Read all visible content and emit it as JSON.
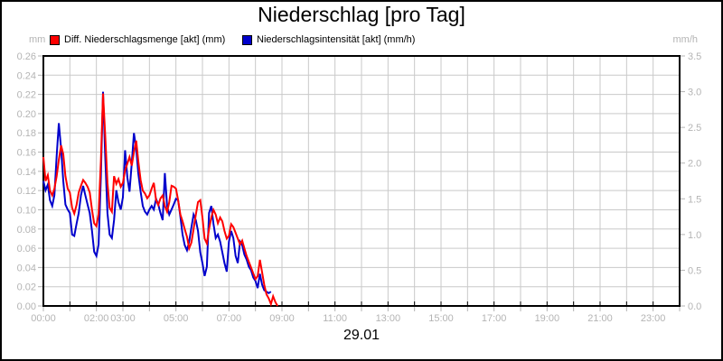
{
  "window": {
    "background": "#ffffff",
    "border_color": "#000000"
  },
  "header": {
    "title": "Niederschlag [pro Tag]"
  },
  "legend": {
    "items": [
      {
        "label": "Diff. Niederschlagsmenge [akt] (mm)",
        "color": "#ff0000"
      },
      {
        "label": "Niederschlagsintensität [akt] (mm/h)",
        "color": "#0000cc"
      }
    ]
  },
  "axis_units": {
    "left": "mm",
    "right": "mm/h"
  },
  "footer": {
    "date_label": "29.01"
  },
  "colors": {
    "grid": "#c9c9c9",
    "axis": "#000000",
    "tick_label": "#b4b4b4",
    "series_red": "#ff0000",
    "series_blue": "#0000cc"
  },
  "chart_data": {
    "type": "line",
    "title": "Niederschlag [pro Tag]",
    "date": "29.01",
    "grid": true,
    "legend_position": "top",
    "x_axis": {
      "unit": "time of day (hours)",
      "range_hours": [
        0,
        24
      ],
      "gridline_every_hours": 1,
      "tick_labels": [
        {
          "hour": 0,
          "label": "00:00"
        },
        {
          "hour": 2,
          "label": "02:00"
        },
        {
          "hour": 3,
          "label": "03:00"
        },
        {
          "hour": 5,
          "label": "05:00"
        },
        {
          "hour": 7,
          "label": "07:00"
        },
        {
          "hour": 9,
          "label": "09:00"
        },
        {
          "hour": 11,
          "label": "11:00"
        },
        {
          "hour": 13,
          "label": "13:00"
        },
        {
          "hour": 15,
          "label": "15:00"
        },
        {
          "hour": 17,
          "label": "17:00"
        },
        {
          "hour": 19,
          "label": "19:00"
        },
        {
          "hour": 21,
          "label": "21:00"
        },
        {
          "hour": 23,
          "label": "23:00"
        }
      ]
    },
    "y_left": {
      "label": "mm",
      "min": 0,
      "max": 0.26,
      "step": 0.02,
      "decimals": 2
    },
    "y_right": {
      "label": "mm/h",
      "min": 0,
      "max": 3.5,
      "step": 0.5,
      "decimals": 1
    },
    "series": [
      {
        "name": "Niederschlagsintensität [akt] (mm/h)",
        "axis": "right",
        "unit": "mm/h",
        "color": "#0000cc",
        "points_min_value": [
          [
            0,
            1.75
          ],
          [
            5,
            1.62
          ],
          [
            10,
            1.7
          ],
          [
            15,
            1.48
          ],
          [
            20,
            1.4
          ],
          [
            25,
            1.55
          ],
          [
            30,
            2.1
          ],
          [
            35,
            2.56
          ],
          [
            40,
            2.2
          ],
          [
            45,
            1.75
          ],
          [
            50,
            1.42
          ],
          [
            55,
            1.35
          ],
          [
            60,
            1.3
          ],
          [
            65,
            1.0
          ],
          [
            70,
            0.98
          ],
          [
            75,
            1.15
          ],
          [
            80,
            1.3
          ],
          [
            85,
            1.55
          ],
          [
            90,
            1.68
          ],
          [
            95,
            1.55
          ],
          [
            100,
            1.42
          ],
          [
            105,
            1.3
          ],
          [
            110,
            1.05
          ],
          [
            115,
            0.76
          ],
          [
            120,
            0.7
          ],
          [
            125,
            0.86
          ],
          [
            130,
            1.8
          ],
          [
            135,
            3.0
          ],
          [
            140,
            2.1
          ],
          [
            145,
            1.3
          ],
          [
            150,
            1.0
          ],
          [
            155,
            0.95
          ],
          [
            160,
            1.2
          ],
          [
            165,
            1.62
          ],
          [
            170,
            1.45
          ],
          [
            175,
            1.35
          ],
          [
            180,
            1.52
          ],
          [
            185,
            2.18
          ],
          [
            190,
            1.8
          ],
          [
            195,
            1.6
          ],
          [
            200,
            2.0
          ],
          [
            205,
            2.42
          ],
          [
            210,
            2.2
          ],
          [
            215,
            1.85
          ],
          [
            220,
            1.6
          ],
          [
            225,
            1.4
          ],
          [
            230,
            1.32
          ],
          [
            235,
            1.28
          ],
          [
            240,
            1.35
          ],
          [
            245,
            1.4
          ],
          [
            250,
            1.35
          ],
          [
            255,
            1.5
          ],
          [
            260,
            1.42
          ],
          [
            265,
            1.3
          ],
          [
            270,
            1.2
          ],
          [
            275,
            1.86
          ],
          [
            280,
            1.4
          ],
          [
            285,
            1.28
          ],
          [
            290,
            1.35
          ],
          [
            295,
            1.42
          ],
          [
            300,
            1.5
          ],
          [
            305,
            1.48
          ],
          [
            310,
            1.25
          ],
          [
            315,
            1.0
          ],
          [
            320,
            0.85
          ],
          [
            325,
            0.78
          ],
          [
            330,
            0.9
          ],
          [
            335,
            1.1
          ],
          [
            340,
            1.28
          ],
          [
            345,
            1.2
          ],
          [
            350,
            1.05
          ],
          [
            355,
            0.75
          ],
          [
            360,
            0.6
          ],
          [
            365,
            0.42
          ],
          [
            370,
            0.55
          ],
          [
            375,
            1.3
          ],
          [
            380,
            1.4
          ],
          [
            385,
            1.15
          ],
          [
            390,
            0.95
          ],
          [
            395,
            1.0
          ],
          [
            400,
            0.9
          ],
          [
            405,
            0.75
          ],
          [
            410,
            0.6
          ],
          [
            415,
            0.48
          ],
          [
            420,
            0.9
          ],
          [
            425,
            1.05
          ],
          [
            430,
            0.95
          ],
          [
            435,
            0.7
          ],
          [
            440,
            0.6
          ],
          [
            445,
            0.9
          ],
          [
            450,
            0.85
          ],
          [
            455,
            0.72
          ],
          [
            460,
            0.65
          ],
          [
            465,
            0.55
          ],
          [
            470,
            0.5
          ],
          [
            475,
            0.4
          ],
          [
            480,
            0.35
          ],
          [
            485,
            0.25
          ],
          [
            490,
            0.45
          ],
          [
            495,
            0.3
          ],
          [
            500,
            0.22
          ],
          [
            505,
            0.2
          ],
          [
            510,
            0.18
          ],
          [
            515,
            0.2
          ]
        ]
      },
      {
        "name": "Diff. Niederschlagsmenge [akt] (mm)",
        "axis": "left",
        "unit": "mm",
        "color": "#ff0000",
        "points_min_value": [
          [
            0,
            0.155
          ],
          [
            5,
            0.13
          ],
          [
            10,
            0.136
          ],
          [
            15,
            0.12
          ],
          [
            20,
            0.115
          ],
          [
            25,
            0.122
          ],
          [
            30,
            0.135
          ],
          [
            35,
            0.152
          ],
          [
            40,
            0.167
          ],
          [
            45,
            0.158
          ],
          [
            50,
            0.135
          ],
          [
            55,
            0.122
          ],
          [
            60,
            0.118
          ],
          [
            65,
            0.102
          ],
          [
            70,
            0.096
          ],
          [
            75,
            0.105
          ],
          [
            80,
            0.118
          ],
          [
            85,
            0.125
          ],
          [
            90,
            0.131
          ],
          [
            95,
            0.128
          ],
          [
            100,
            0.124
          ],
          [
            105,
            0.118
          ],
          [
            110,
            0.1
          ],
          [
            115,
            0.086
          ],
          [
            120,
            0.083
          ],
          [
            125,
            0.096
          ],
          [
            130,
            0.15
          ],
          [
            135,
            0.221
          ],
          [
            140,
            0.178
          ],
          [
            145,
            0.128
          ],
          [
            150,
            0.102
          ],
          [
            155,
            0.098
          ],
          [
            160,
            0.135
          ],
          [
            165,
            0.127
          ],
          [
            170,
            0.132
          ],
          [
            175,
            0.124
          ],
          [
            180,
            0.128
          ],
          [
            185,
            0.141
          ],
          [
            190,
            0.148
          ],
          [
            195,
            0.155
          ],
          [
            200,
            0.146
          ],
          [
            205,
            0.16
          ],
          [
            210,
            0.172
          ],
          [
            215,
            0.15
          ],
          [
            220,
            0.131
          ],
          [
            225,
            0.12
          ],
          [
            230,
            0.117
          ],
          [
            235,
            0.112
          ],
          [
            240,
            0.115
          ],
          [
            245,
            0.122
          ],
          [
            250,
            0.128
          ],
          [
            255,
            0.11
          ],
          [
            260,
            0.105
          ],
          [
            265,
            0.112
          ],
          [
            270,
            0.115
          ],
          [
            275,
            0.104
          ],
          [
            280,
            0.098
          ],
          [
            285,
            0.108
          ],
          [
            290,
            0.125
          ],
          [
            295,
            0.124
          ],
          [
            300,
            0.122
          ],
          [
            305,
            0.11
          ],
          [
            310,
            0.095
          ],
          [
            315,
            0.088
          ],
          [
            320,
            0.08
          ],
          [
            325,
            0.072
          ],
          [
            330,
            0.06
          ],
          [
            335,
            0.066
          ],
          [
            340,
            0.08
          ],
          [
            345,
            0.095
          ],
          [
            350,
            0.108
          ],
          [
            355,
            0.11
          ],
          [
            360,
            0.092
          ],
          [
            365,
            0.07
          ],
          [
            370,
            0.065
          ],
          [
            375,
            0.08
          ],
          [
            380,
            0.092
          ],
          [
            385,
            0.1
          ],
          [
            390,
            0.095
          ],
          [
            395,
            0.086
          ],
          [
            400,
            0.092
          ],
          [
            405,
            0.088
          ],
          [
            410,
            0.078
          ],
          [
            415,
            0.07
          ],
          [
            420,
            0.073
          ],
          [
            425,
            0.085
          ],
          [
            430,
            0.082
          ],
          [
            435,
            0.076
          ],
          [
            440,
            0.07
          ],
          [
            445,
            0.064
          ],
          [
            450,
            0.068
          ],
          [
            455,
            0.06
          ],
          [
            460,
            0.052
          ],
          [
            465,
            0.046
          ],
          [
            470,
            0.04
          ],
          [
            475,
            0.034
          ],
          [
            480,
            0.028
          ],
          [
            485,
            0.031
          ],
          [
            490,
            0.048
          ],
          [
            495,
            0.035
          ],
          [
            500,
            0.022
          ],
          [
            505,
            0.012
          ],
          [
            510,
            0.008
          ],
          [
            515,
            0.002
          ],
          [
            520,
            0.01
          ],
          [
            525,
            0.004
          ],
          [
            530,
            0.0
          ]
        ]
      }
    ]
  }
}
